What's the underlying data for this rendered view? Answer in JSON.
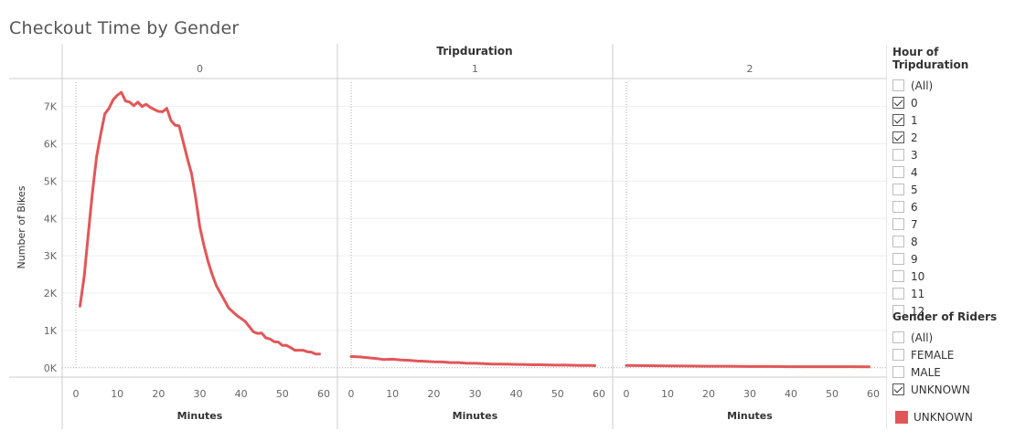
{
  "title": "Checkout Time by Gender",
  "colors": {
    "series": "#e15759",
    "grid": "#eeeeee",
    "divider": "#cccccc",
    "refline": "#aaaaaa"
  },
  "chart_data": {
    "type": "line",
    "column_header": "Tripduration",
    "panels": [
      {
        "label": "0",
        "x": [
          1,
          2,
          3,
          4,
          5,
          6,
          7,
          8,
          9,
          10,
          11,
          12,
          13,
          14,
          15,
          16,
          17,
          18,
          19,
          20,
          21,
          22,
          23,
          24,
          25,
          26,
          27,
          28,
          29,
          30,
          31,
          32,
          33,
          34,
          35,
          36,
          37,
          38,
          39,
          40,
          41,
          42,
          43,
          44,
          45,
          46,
          47,
          48,
          49,
          50,
          51,
          52,
          53,
          54,
          55,
          56,
          57,
          58,
          59
        ],
        "y": [
          1650,
          2450,
          3600,
          4700,
          5650,
          6250,
          6800,
          6950,
          7180,
          7300,
          7380,
          7150,
          7120,
          7020,
          7120,
          7000,
          7060,
          6980,
          6920,
          6870,
          6860,
          6950,
          6630,
          6500,
          6480,
          6050,
          5600,
          5200,
          4550,
          3780,
          3280,
          2850,
          2500,
          2200,
          2000,
          1800,
          1600,
          1500,
          1400,
          1320,
          1240,
          1100,
          960,
          920,
          930,
          800,
          770,
          700,
          690,
          600,
          600,
          540,
          470,
          470,
          470,
          430,
          420,
          370,
          370
        ]
      },
      {
        "label": "1",
        "x": [
          0,
          2,
          4,
          6,
          8,
          10,
          12,
          14,
          16,
          18,
          20,
          22,
          24,
          26,
          28,
          30,
          32,
          34,
          36,
          38,
          40,
          42,
          44,
          46,
          48,
          50,
          52,
          54,
          56,
          58,
          59
        ],
        "y": [
          300,
          290,
          270,
          250,
          220,
          230,
          210,
          200,
          180,
          170,
          160,
          155,
          140,
          140,
          120,
          120,
          110,
          100,
          100,
          95,
          90,
          85,
          80,
          80,
          75,
          70,
          70,
          65,
          60,
          60,
          55
        ]
      },
      {
        "label": "2",
        "x": [
          0,
          5,
          10,
          15,
          20,
          25,
          30,
          35,
          40,
          45,
          50,
          55,
          59
        ],
        "y": [
          60,
          55,
          50,
          45,
          40,
          40,
          35,
          35,
          30,
          30,
          30,
          30,
          25
        ]
      }
    ],
    "series": [
      {
        "name": "UNKNOWN"
      }
    ],
    "xlabel": "Minutes",
    "ylabel": "Number of Bikes",
    "xlim": [
      -2,
      62
    ],
    "ylim": [
      -250,
      7750
    ],
    "x_ticks": [
      "0",
      "10",
      "20",
      "30",
      "40",
      "50",
      "60"
    ],
    "y_ticks": [
      "0K",
      "1K",
      "2K",
      "3K",
      "4K",
      "5K",
      "6K",
      "7K"
    ],
    "grid": true
  },
  "filters": {
    "hour": {
      "title": "Hour of Tripduration",
      "options": [
        {
          "label": "(All)",
          "checked": false
        },
        {
          "label": "0",
          "checked": true
        },
        {
          "label": "1",
          "checked": true
        },
        {
          "label": "2",
          "checked": true
        },
        {
          "label": "3",
          "checked": false
        },
        {
          "label": "4",
          "checked": false
        },
        {
          "label": "5",
          "checked": false
        },
        {
          "label": "6",
          "checked": false
        },
        {
          "label": "7",
          "checked": false
        },
        {
          "label": "8",
          "checked": false
        },
        {
          "label": "9",
          "checked": false
        },
        {
          "label": "10",
          "checked": false
        },
        {
          "label": "11",
          "checked": false
        },
        {
          "label": "12",
          "checked": false
        }
      ]
    },
    "gender": {
      "title": "Gender of Riders",
      "options": [
        {
          "label": "(All)",
          "checked": false
        },
        {
          "label": "FEMALE",
          "checked": false
        },
        {
          "label": "MALE",
          "checked": false
        },
        {
          "label": "UNKNOWN",
          "checked": true
        }
      ]
    }
  },
  "legend": {
    "label": "UNKNOWN"
  }
}
